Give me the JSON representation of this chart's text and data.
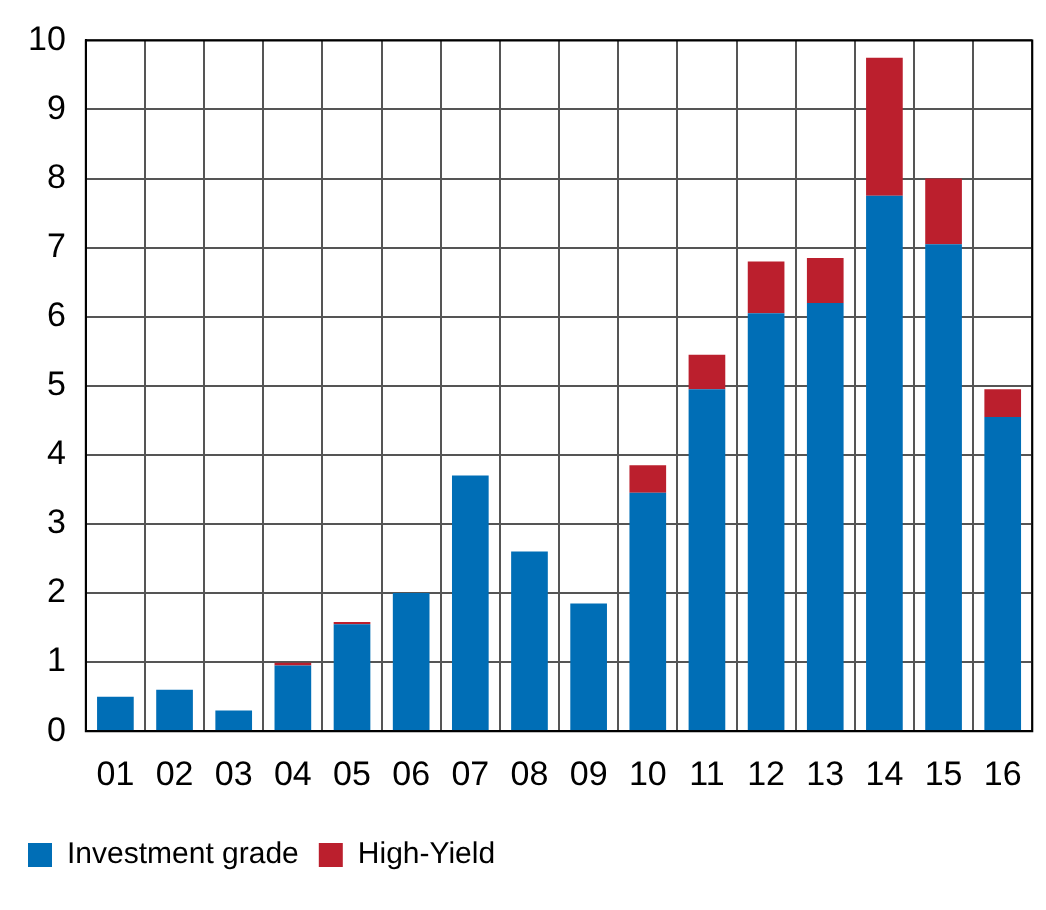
{
  "chart_data": {
    "type": "bar",
    "stacked": true,
    "categories": [
      "01",
      "02",
      "03",
      "04",
      "05",
      "06",
      "07",
      "08",
      "09",
      "10",
      "11",
      "12",
      "13",
      "14",
      "15",
      "16"
    ],
    "series": [
      {
        "name": "Investment grade",
        "color": "#006eb6",
        "values": [
          0.5,
          0.6,
          0.3,
          0.95,
          1.55,
          2.0,
          3.7,
          2.6,
          1.85,
          3.45,
          4.95,
          6.05,
          6.2,
          7.75,
          7.05,
          4.55
        ]
      },
      {
        "name": "High-Yield",
        "color": "#bb1f2d",
        "values": [
          0,
          0,
          0,
          0.04,
          0.03,
          0,
          0,
          0,
          0,
          0.4,
          0.5,
          0.75,
          0.65,
          2.0,
          0.95,
          0.4
        ]
      }
    ],
    "ylim": [
      0,
      10
    ],
    "yticks": [
      0,
      1,
      2,
      3,
      4,
      5,
      6,
      7,
      8,
      9,
      10
    ],
    "grid": true,
    "legend": "bottom left"
  }
}
